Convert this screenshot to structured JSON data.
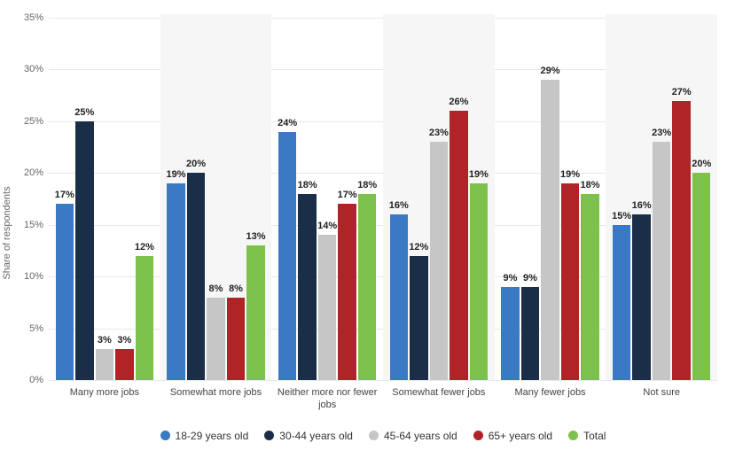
{
  "chart": {
    "type": "bar",
    "yaxis_title": "Share of respondents",
    "ymin": 0,
    "ymax": 35,
    "ytick_step": 5,
    "background_color": "#ffffff",
    "alt_group_bg": "#f6f6f6",
    "grid_color": "#e8e8e8",
    "categories": [
      "Many more jobs",
      "Somewhat more jobs",
      "Neither more nor fewer jobs",
      "Somewhat fewer jobs",
      "Many fewer jobs",
      "Not sure"
    ],
    "series": [
      {
        "name": "18-29 years old",
        "color": "#3a79c4",
        "values": [
          17,
          19,
          24,
          16,
          9,
          15
        ]
      },
      {
        "name": "30-44 years old",
        "color": "#1a2f47",
        "values": [
          25,
          20,
          18,
          12,
          9,
          16
        ]
      },
      {
        "name": "45-64 years old",
        "color": "#c6c6c6",
        "values": [
          3,
          8,
          14,
          23,
          29,
          23
        ]
      },
      {
        "name": "65+ years old",
        "color": "#b02427",
        "values": [
          3,
          8,
          17,
          26,
          19,
          27
        ]
      },
      {
        "name": "Total",
        "color": "#7cc24a",
        "values": [
          12,
          13,
          18,
          19,
          18,
          20
        ]
      }
    ],
    "label_fontsize": 11,
    "value_suffix": "%"
  }
}
